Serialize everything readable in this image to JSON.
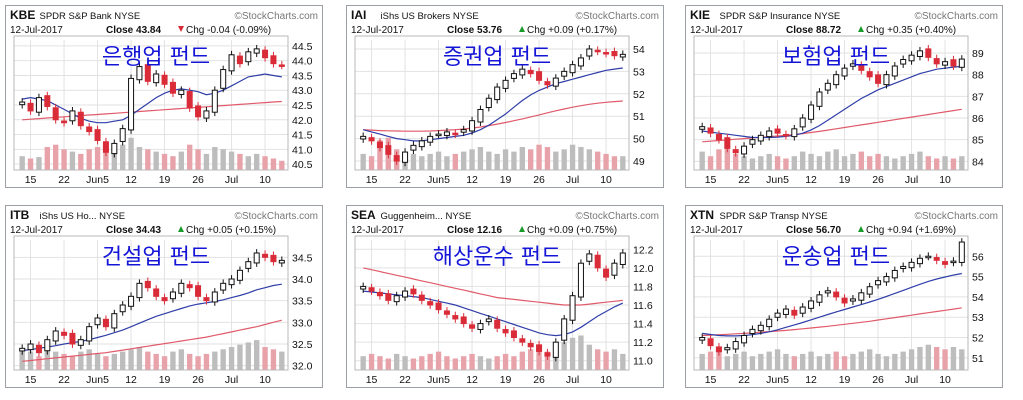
{
  "colors": {
    "up": "#111111",
    "down": "#d92c38",
    "ma_short": "#2f3ea8",
    "ma_long": "#e05a6a",
    "vol_up": "#bdbdbd",
    "vol_down": "#e8a3aa",
    "overlay_text": "#1515d8",
    "grid": "#e2e2e2"
  },
  "watermark": "©StockCharts.com",
  "x_tick_labels": [
    "15",
    "22",
    "Jun5",
    "12",
    "19",
    "26",
    "Jul",
    "10"
  ],
  "chart_data": [
    {
      "type": "candlestick",
      "symbol": "KBE",
      "name": "SPDR S&P Bank",
      "exchange": "NYSE",
      "date": "12-Jul-2017",
      "close_text": "Close 43.84",
      "chg_text": "Chg -0.04 (-0.09%)",
      "chg_arrow": "down",
      "overlay": "은행업 펀드",
      "ylim": [
        40.3,
        44.7
      ],
      "yticks": [
        "40.5",
        "41.0",
        "41.5",
        "42.0",
        "42.5",
        "43.0",
        "43.5",
        "44.0",
        "44.5"
      ],
      "close": [
        42.6,
        42.3,
        42.75,
        42.45,
        42.0,
        41.9,
        42.3,
        41.8,
        41.6,
        41.3,
        40.9,
        41.2,
        41.7,
        43.4,
        43.8,
        43.3,
        43.55,
        43.2,
        42.9,
        43.0,
        42.4,
        42.1,
        42.3,
        43.0,
        43.7,
        44.2,
        43.9,
        44.3,
        44.4,
        44.1,
        43.9,
        43.84
      ],
      "ma_short": [
        42.7,
        42.75,
        42.7,
        42.65,
        42.5,
        42.35,
        42.2,
        42.05,
        41.95,
        41.9,
        41.9,
        41.95,
        42.0,
        42.15,
        42.35,
        42.55,
        42.75,
        42.9,
        43.0,
        43.05,
        43.0,
        42.95,
        42.85,
        42.9,
        43.0,
        43.15,
        43.3,
        43.45,
        43.5,
        43.55,
        43.5,
        43.45
      ],
      "ma_long": [
        42.0,
        42.02,
        42.04,
        42.06,
        42.08,
        42.1,
        42.12,
        42.14,
        42.16,
        42.18,
        42.2,
        42.22,
        42.24,
        42.26,
        42.28,
        42.3,
        42.32,
        42.34,
        42.36,
        42.38,
        42.4,
        42.42,
        42.44,
        42.46,
        42.48,
        42.5,
        42.52,
        42.54,
        42.56,
        42.58,
        42.6,
        42.62
      ],
      "volume": [
        0.3,
        0.25,
        0.28,
        0.5,
        0.55,
        0.45,
        0.4,
        0.35,
        0.45,
        0.5,
        0.6,
        0.35,
        0.55,
        0.7,
        0.5,
        0.45,
        0.4,
        0.35,
        0.3,
        0.4,
        0.55,
        0.45,
        0.35,
        0.5,
        0.45,
        0.4,
        0.35,
        0.3,
        0.35,
        0.3,
        0.25,
        0.2
      ]
    },
    {
      "type": "candlestick",
      "symbol": "IAI",
      "name": "iShs US Brokers",
      "exchange": "NYSE",
      "date": "12-Jul-2017",
      "close_text": "Close 53.76",
      "chg_text": "Chg +0.09 (+0.17%)",
      "chg_arrow": "up",
      "overlay": "증권업 펀드",
      "ylim": [
        48.6,
        54.4
      ],
      "yticks": [
        "49",
        "50",
        "51",
        "52",
        "53",
        "54"
      ],
      "close": [
        50.1,
        49.9,
        49.6,
        49.3,
        49.0,
        49.4,
        49.7,
        49.9,
        50.1,
        50.2,
        50.3,
        50.2,
        50.4,
        50.8,
        51.3,
        51.8,
        52.3,
        52.6,
        52.9,
        53.1,
        52.9,
        52.6,
        52.4,
        52.7,
        53.0,
        53.3,
        53.6,
        54.0,
        53.9,
        53.8,
        53.7,
        53.76
      ],
      "ma_short": [
        50.4,
        50.3,
        50.2,
        50.1,
        50.0,
        49.95,
        49.9,
        49.9,
        49.95,
        50.0,
        50.05,
        50.1,
        50.15,
        50.25,
        50.4,
        50.6,
        50.85,
        51.1,
        51.4,
        51.7,
        51.95,
        52.15,
        52.3,
        52.45,
        52.55,
        52.65,
        52.75,
        52.85,
        52.95,
        53.05,
        53.1,
        53.15
      ],
      "ma_long": [
        50.4,
        50.38,
        50.36,
        50.35,
        50.34,
        50.33,
        50.33,
        50.33,
        50.34,
        50.36,
        50.38,
        50.4,
        50.43,
        50.47,
        50.52,
        50.58,
        50.65,
        50.72,
        50.8,
        50.88,
        50.97,
        51.06,
        51.15,
        51.24,
        51.32,
        51.4,
        51.47,
        51.53,
        51.58,
        51.62,
        51.65,
        51.68
      ],
      "volume": [
        0.35,
        0.3,
        0.65,
        0.7,
        0.45,
        0.4,
        0.35,
        0.3,
        0.35,
        0.4,
        0.3,
        0.35,
        0.4,
        0.45,
        0.5,
        0.4,
        0.35,
        0.45,
        0.4,
        0.5,
        0.45,
        0.55,
        0.5,
        0.4,
        0.45,
        0.55,
        0.5,
        0.45,
        0.4,
        0.35,
        0.3,
        0.3
      ]
    },
    {
      "type": "candlestick",
      "symbol": "KIE",
      "name": "SPDR S&P Insurance",
      "exchange": "NYSE",
      "date": "12-Jul-2017",
      "close_text": "Close 88.72",
      "chg_text": "Chg +0.35 (+0.40%)",
      "chg_arrow": "up",
      "overlay": "보험업 펀드",
      "ylim": [
        83.6,
        89.6
      ],
      "yticks": [
        "84",
        "85",
        "86",
        "87",
        "88",
        "89"
      ],
      "close": [
        85.6,
        85.3,
        85.0,
        84.6,
        84.4,
        84.7,
        85.0,
        85.2,
        85.4,
        85.3,
        85.2,
        85.5,
        86.0,
        86.6,
        87.2,
        87.6,
        88.0,
        88.3,
        88.5,
        88.2,
        87.9,
        87.6,
        88.0,
        88.4,
        88.7,
        88.9,
        89.1,
        88.8,
        88.5,
        88.6,
        88.4,
        88.72
      ],
      "ma_short": [
        85.4,
        85.35,
        85.3,
        85.25,
        85.2,
        85.15,
        85.1,
        85.1,
        85.1,
        85.12,
        85.15,
        85.2,
        85.3,
        85.45,
        85.65,
        85.9,
        86.15,
        86.4,
        86.65,
        86.9,
        87.1,
        87.3,
        87.45,
        87.6,
        87.75,
        87.9,
        88.05,
        88.15,
        88.25,
        88.3,
        88.35,
        88.38
      ],
      "ma_long": [
        84.9,
        84.93,
        84.96,
        84.99,
        85.02,
        85.05,
        85.08,
        85.11,
        85.14,
        85.17,
        85.2,
        85.24,
        85.28,
        85.33,
        85.38,
        85.44,
        85.5,
        85.56,
        85.62,
        85.68,
        85.74,
        85.8,
        85.86,
        85.92,
        85.98,
        86.04,
        86.1,
        86.16,
        86.22,
        86.28,
        86.34,
        86.4
      ],
      "volume": [
        0.4,
        0.3,
        0.45,
        0.5,
        0.35,
        0.3,
        0.25,
        0.3,
        0.35,
        0.3,
        0.25,
        0.3,
        0.4,
        0.35,
        0.3,
        0.4,
        0.45,
        0.3,
        0.35,
        0.4,
        0.3,
        0.35,
        0.3,
        0.25,
        0.3,
        0.35,
        0.4,
        0.3,
        0.25,
        0.3,
        0.25,
        0.3
      ]
    },
    {
      "type": "candlestick",
      "symbol": "ITB",
      "name": "iShs US Ho...",
      "exchange": "NYSE",
      "date": "12-Jul-2017",
      "close_text": "Close 34.43",
      "chg_text": "Chg +0.05 (+0.15%)",
      "chg_arrow": "up",
      "overlay": "건설업 펀드",
      "ylim": [
        31.9,
        34.9
      ],
      "yticks": [
        "32.0",
        "32.5",
        "33.0",
        "33.5",
        "34.0",
        "34.5"
      ],
      "close": [
        32.4,
        32.5,
        32.3,
        32.6,
        32.8,
        32.7,
        32.5,
        32.6,
        32.9,
        33.1,
        32.9,
        33.2,
        33.4,
        33.6,
        33.9,
        33.8,
        33.6,
        33.5,
        33.7,
        33.9,
        33.8,
        33.6,
        33.5,
        33.7,
        33.9,
        34.0,
        34.2,
        34.4,
        34.6,
        34.5,
        34.4,
        34.43
      ],
      "ma_short": [
        32.35,
        32.37,
        32.4,
        32.43,
        32.46,
        32.5,
        32.53,
        32.56,
        32.6,
        32.65,
        32.7,
        32.76,
        32.82,
        32.9,
        32.98,
        33.06,
        33.14,
        33.2,
        33.26,
        33.32,
        33.38,
        33.42,
        33.45,
        33.48,
        33.52,
        33.57,
        33.62,
        33.68,
        33.75,
        33.8,
        33.85,
        33.88
      ],
      "ma_long": [
        32.1,
        32.12,
        32.14,
        32.16,
        32.18,
        32.2,
        32.22,
        32.24,
        32.26,
        32.28,
        32.3,
        32.33,
        32.36,
        32.39,
        32.42,
        32.45,
        32.48,
        32.51,
        32.54,
        32.57,
        32.6,
        32.63,
        32.66,
        32.7,
        32.74,
        32.78,
        32.82,
        32.86,
        32.9,
        32.95,
        33.0,
        33.05
      ],
      "volume": [
        0.45,
        0.4,
        0.3,
        0.5,
        0.4,
        0.35,
        0.3,
        0.4,
        0.45,
        0.35,
        0.3,
        0.35,
        0.4,
        0.45,
        0.5,
        0.4,
        0.35,
        0.3,
        0.4,
        0.45,
        0.35,
        0.3,
        0.35,
        0.4,
        0.45,
        0.5,
        0.55,
        0.6,
        0.65,
        0.5,
        0.45,
        0.4
      ]
    },
    {
      "type": "candlestick",
      "symbol": "SEA",
      "name": "Guggenheim...",
      "exchange": "NYSE",
      "date": "12-Jul-2017",
      "close_text": "Close 12.16",
      "chg_text": "Chg +0.09 (+0.75%)",
      "chg_arrow": "up",
      "overlay": "해상운수 펀드",
      "ylim": [
        10.9,
        12.3
      ],
      "yticks": [
        "11.0",
        "11.2",
        "11.4",
        "11.6",
        "11.8",
        "12.0",
        "12.2"
      ],
      "close": [
        11.8,
        11.75,
        11.7,
        11.65,
        11.7,
        11.75,
        11.72,
        11.65,
        11.6,
        11.55,
        11.5,
        11.45,
        11.4,
        11.35,
        11.4,
        11.45,
        11.35,
        11.3,
        11.25,
        11.2,
        11.15,
        11.1,
        11.05,
        11.2,
        11.45,
        11.7,
        12.05,
        12.15,
        12.0,
        11.9,
        12.05,
        12.16
      ],
      "ma_short": [
        11.75,
        11.74,
        11.73,
        11.72,
        11.71,
        11.7,
        11.69,
        11.68,
        11.66,
        11.64,
        11.62,
        11.6,
        11.57,
        11.54,
        11.51,
        11.48,
        11.45,
        11.42,
        11.39,
        11.36,
        11.33,
        11.3,
        11.28,
        11.27,
        11.28,
        11.31,
        11.36,
        11.42,
        11.48,
        11.53,
        11.58,
        11.62
      ],
      "ma_long": [
        12.0,
        11.98,
        11.96,
        11.94,
        11.92,
        11.9,
        11.88,
        11.86,
        11.84,
        11.82,
        11.8,
        11.78,
        11.76,
        11.74,
        11.72,
        11.7,
        11.68,
        11.67,
        11.66,
        11.65,
        11.64,
        11.63,
        11.62,
        11.61,
        11.6,
        11.6,
        11.6,
        11.61,
        11.62,
        11.63,
        11.64,
        11.65
      ],
      "volume": [
        0.3,
        0.35,
        0.3,
        0.25,
        0.35,
        0.3,
        0.25,
        0.3,
        0.35,
        0.4,
        0.3,
        0.25,
        0.3,
        0.35,
        0.3,
        0.25,
        0.3,
        0.35,
        0.3,
        0.4,
        0.45,
        0.5,
        0.4,
        0.55,
        0.6,
        0.7,
        0.75,
        0.55,
        0.45,
        0.4,
        0.45,
        0.35
      ]
    },
    {
      "type": "candlestick",
      "symbol": "XTN",
      "name": "SPDR S&P Transp",
      "exchange": "NYSE",
      "date": "12-Jul-2017",
      "close_text": "Close 56.70",
      "chg_text": "Chg +0.94 (+1.69%)",
      "chg_arrow": "up",
      "overlay": "운송업 펀드",
      "ylim": [
        50.4,
        56.8
      ],
      "yticks": [
        "51",
        "52",
        "53",
        "54",
        "55",
        "56"
      ],
      "close": [
        52.0,
        51.6,
        51.3,
        51.5,
        51.8,
        52.1,
        52.4,
        52.6,
        52.9,
        53.2,
        53.4,
        53.1,
        53.5,
        53.8,
        54.1,
        54.3,
        54.0,
        53.7,
        53.9,
        54.2,
        54.5,
        54.8,
        55.0,
        55.3,
        55.5,
        55.7,
        55.9,
        56.0,
        55.8,
        55.6,
        55.76,
        56.7
      ],
      "ma_short": [
        52.2,
        52.15,
        52.1,
        52.08,
        52.08,
        52.1,
        52.14,
        52.2,
        52.28,
        52.38,
        52.5,
        52.62,
        52.74,
        52.87,
        53.0,
        53.13,
        53.26,
        53.38,
        53.5,
        53.62,
        53.75,
        53.88,
        54.02,
        54.17,
        54.32,
        54.47,
        54.62,
        54.76,
        54.88,
        54.98,
        55.07,
        55.15
      ],
      "ma_long": [
        52.1,
        52.12,
        52.14,
        52.16,
        52.18,
        52.2,
        52.23,
        52.26,
        52.29,
        52.32,
        52.35,
        52.39,
        52.43,
        52.47,
        52.51,
        52.55,
        52.6,
        52.65,
        52.7,
        52.75,
        52.8,
        52.86,
        52.92,
        52.98,
        53.04,
        53.1,
        53.16,
        53.22,
        53.28,
        53.34,
        53.4,
        53.46
      ],
      "volume": [
        0.35,
        0.4,
        0.45,
        0.3,
        0.35,
        0.4,
        0.3,
        0.35,
        0.4,
        0.45,
        0.35,
        0.3,
        0.35,
        0.4,
        0.3,
        0.35,
        0.4,
        0.3,
        0.35,
        0.4,
        0.45,
        0.35,
        0.3,
        0.35,
        0.4,
        0.45,
        0.5,
        0.55,
        0.5,
        0.45,
        0.5,
        0.45
      ]
    }
  ]
}
